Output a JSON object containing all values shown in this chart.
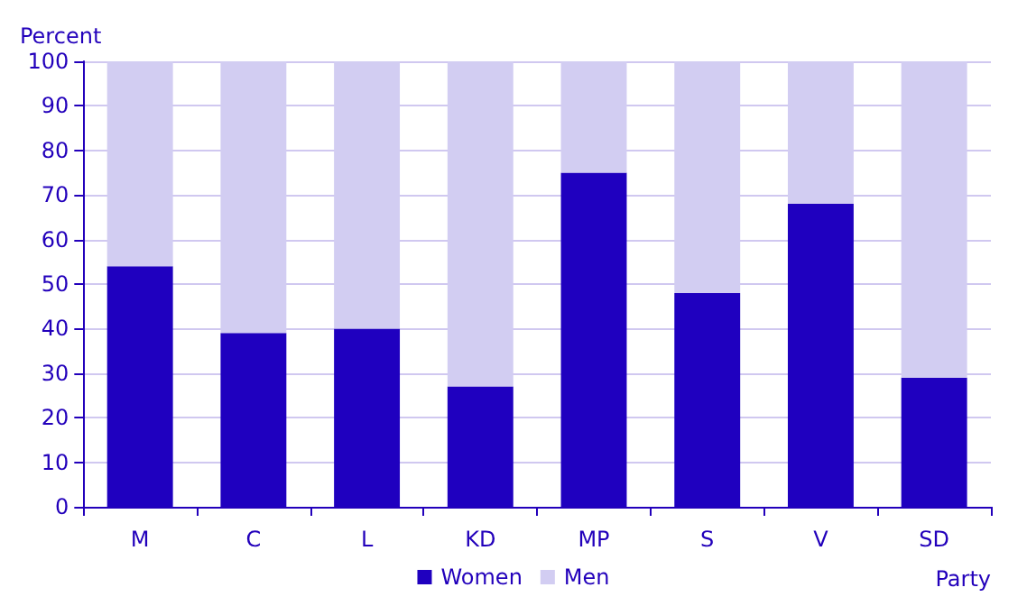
{
  "chart_data": {
    "type": "bar",
    "stacked": true,
    "xlabel": "Party",
    "ylabel": "Percent",
    "categories": [
      "M",
      "C",
      "L",
      "KD",
      "MP",
      "S",
      "V",
      "SD"
    ],
    "series": [
      {
        "name": "Women",
        "color": "#1f00bf",
        "values": [
          54,
          39,
          40,
          27,
          75,
          48,
          68,
          29
        ]
      },
      {
        "name": "Men",
        "color": "#d2cdf2",
        "values": [
          46,
          61,
          60,
          73,
          25,
          52,
          32,
          71
        ]
      }
    ],
    "ylim": [
      0,
      100
    ],
    "yticks": [
      0,
      10,
      20,
      30,
      40,
      50,
      60,
      70,
      80,
      90,
      100
    ],
    "grid": "y",
    "legend": "bottom"
  }
}
